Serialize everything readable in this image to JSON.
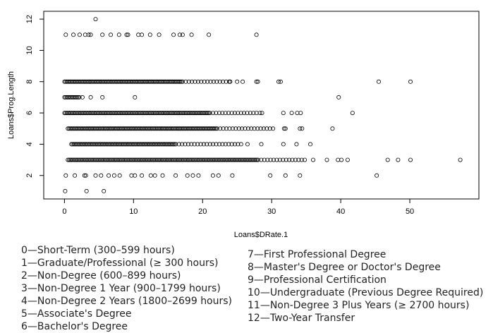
{
  "chart_data": {
    "type": "scatter",
    "xlabel": "Loans$DRate.1",
    "ylabel": "Loans$Prog.Length",
    "xlim": [
      -3,
      60
    ],
    "ylim": [
      0.5,
      12.5
    ],
    "x_ticks": [
      "0",
      "10",
      "20",
      "30",
      "40",
      "50"
    ],
    "y_ticks": [
      "2",
      "4",
      "6",
      "8",
      "10",
      "12"
    ],
    "bands": [
      {
        "y": 8,
        "from": 0,
        "to": 24,
        "dense_to": 17
      },
      {
        "y": 6,
        "from": 0,
        "to": 28,
        "dense_to": 21
      },
      {
        "y": 5,
        "from": 0.5,
        "to": 30,
        "dense_to": 22
      },
      {
        "y": 4,
        "from": 1,
        "to": 26,
        "dense_to": 16
      },
      {
        "y": 3,
        "from": 0.5,
        "to": 35,
        "dense_to": 28
      },
      {
        "y": 7,
        "from": 0,
        "to": 3,
        "dense_to": 2
      }
    ],
    "points": [
      [
        4.5,
        12
      ],
      [
        0.2,
        11
      ],
      [
        1.3,
        11
      ],
      [
        2.2,
        11
      ],
      [
        3,
        11
      ],
      [
        3.5,
        11
      ],
      [
        3.8,
        11
      ],
      [
        5.5,
        11
      ],
      [
        6.7,
        11
      ],
      [
        7.9,
        11
      ],
      [
        9,
        11
      ],
      [
        9.2,
        11
      ],
      [
        10.7,
        11
      ],
      [
        11.2,
        11
      ],
      [
        12.4,
        11
      ],
      [
        13.7,
        11
      ],
      [
        15.8,
        11
      ],
      [
        16.7,
        11
      ],
      [
        17.1,
        11
      ],
      [
        18.4,
        11
      ],
      [
        20.9,
        11
      ],
      [
        27.8,
        11
      ],
      [
        24,
        8
      ],
      [
        25,
        8
      ],
      [
        25.8,
        8
      ],
      [
        27.8,
        8
      ],
      [
        28,
        8
      ],
      [
        31,
        8
      ],
      [
        31.3,
        8
      ],
      [
        45.5,
        8
      ],
      [
        50.1,
        8
      ],
      [
        3.8,
        7
      ],
      [
        5.5,
        7
      ],
      [
        10.2,
        7
      ],
      [
        39.7,
        7
      ],
      [
        28.3,
        6
      ],
      [
        28.6,
        6
      ],
      [
        31.7,
        6
      ],
      [
        32.9,
        6
      ],
      [
        33.7,
        6
      ],
      [
        34.2,
        6
      ],
      [
        41.7,
        6
      ],
      [
        30.2,
        5
      ],
      [
        31.8,
        5
      ],
      [
        32,
        5
      ],
      [
        34.1,
        5
      ],
      [
        34.4,
        5
      ],
      [
        38.8,
        5
      ],
      [
        26.5,
        4
      ],
      [
        28.5,
        4
      ],
      [
        31.7,
        4
      ],
      [
        33.6,
        4
      ],
      [
        35.6,
        4
      ],
      [
        36,
        3
      ],
      [
        38,
        3
      ],
      [
        39.6,
        3
      ],
      [
        40.1,
        3
      ],
      [
        41,
        3
      ],
      [
        46.8,
        3
      ],
      [
        48.3,
        3
      ],
      [
        50.1,
        3
      ],
      [
        57.3,
        3
      ],
      [
        0.2,
        2
      ],
      [
        1.5,
        2
      ],
      [
        2.9,
        2
      ],
      [
        3.1,
        2
      ],
      [
        4.5,
        2
      ],
      [
        5.3,
        2
      ],
      [
        6.4,
        2
      ],
      [
        7.2,
        2
      ],
      [
        8,
        2
      ],
      [
        9.7,
        2
      ],
      [
        10.2,
        2
      ],
      [
        11.2,
        2
      ],
      [
        12.5,
        2
      ],
      [
        13.1,
        2
      ],
      [
        14.2,
        2
      ],
      [
        16.1,
        2
      ],
      [
        17.8,
        2
      ],
      [
        18.6,
        2
      ],
      [
        19.4,
        2
      ],
      [
        21.5,
        2
      ],
      [
        22.3,
        2
      ],
      [
        24.3,
        2
      ],
      [
        29.8,
        2
      ],
      [
        32,
        2
      ],
      [
        34.1,
        2
      ],
      [
        45.2,
        2
      ],
      [
        0.1,
        1
      ],
      [
        3.2,
        1
      ],
      [
        5.7,
        1
      ]
    ],
    "legend_left": [
      "0—Short-Term (300–599 hours)",
      "1—Graduate/Professional (≥ 300 hours)",
      "2—Non-Degree (600–899 hours)",
      "3—Non-Degree 1 Year (900–1799 hours)",
      "4—Non-Degree 2 Years (1800–2699 hours)",
      "5—Associate's Degree",
      "6—Bachelor's Degree"
    ],
    "legend_right": [
      "7—First Professional Degree",
      "8—Master's Degree or Doctor's Degree",
      "9—Professional Certification",
      "10—Undergraduate (Previous Degree Required)",
      "11—Non-Degree 3 Plus Years (≥ 2700 hours)",
      "12—Two-Year Transfer"
    ]
  }
}
